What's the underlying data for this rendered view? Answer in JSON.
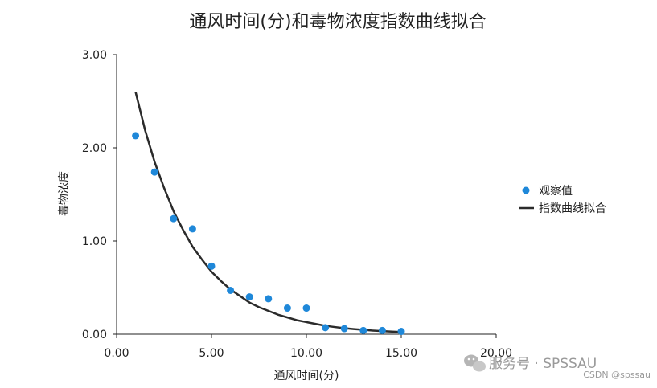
{
  "chart_data": {
    "type": "scatter",
    "title": "通风时间(分)和毒物浓度指数曲线拟合",
    "xlabel": "通风时间(分)",
    "ylabel": "毒物浓度",
    "xlim": [
      0,
      20
    ],
    "ylim": [
      0,
      3
    ],
    "x_ticks": [
      "0.00",
      "5.00",
      "10.00",
      "15.00",
      "20.00"
    ],
    "y_ticks": [
      "0.00",
      "1.00",
      "2.00",
      "3.00"
    ],
    "grid": false,
    "legend_position": "right",
    "series": [
      {
        "name": "观察值",
        "kind": "scatter",
        "color": "#1f88d9",
        "x": [
          1,
          2,
          3,
          4,
          5,
          6,
          7,
          8,
          9,
          10,
          11,
          12,
          13,
          14,
          15
        ],
        "y": [
          2.13,
          1.74,
          1.24,
          1.13,
          0.73,
          0.47,
          0.4,
          0.38,
          0.28,
          0.28,
          0.07,
          0.06,
          0.04,
          0.04,
          0.03
        ]
      },
      {
        "name": "指数曲线拟合",
        "kind": "line",
        "color": "#2b2b2b",
        "x": [
          1,
          1.5,
          2,
          2.5,
          3,
          3.5,
          4,
          4.5,
          5,
          5.5,
          6,
          6.5,
          7,
          7.5,
          8,
          8.5,
          9,
          9.5,
          10,
          10.5,
          11,
          11.5,
          12,
          12.5,
          13,
          13.5,
          14,
          14.5,
          15
        ],
        "y": [
          2.6,
          2.19,
          1.85,
          1.57,
          1.32,
          1.12,
          0.94,
          0.8,
          0.67,
          0.57,
          0.48,
          0.41,
          0.34,
          0.29,
          0.25,
          0.21,
          0.18,
          0.15,
          0.13,
          0.11,
          0.09,
          0.077,
          0.065,
          0.055,
          0.047,
          0.039,
          0.033,
          0.028,
          0.024
        ]
      }
    ]
  },
  "watermark": {
    "main": "服务号 · SPSSAU",
    "sub": "CSDN @spssau"
  }
}
